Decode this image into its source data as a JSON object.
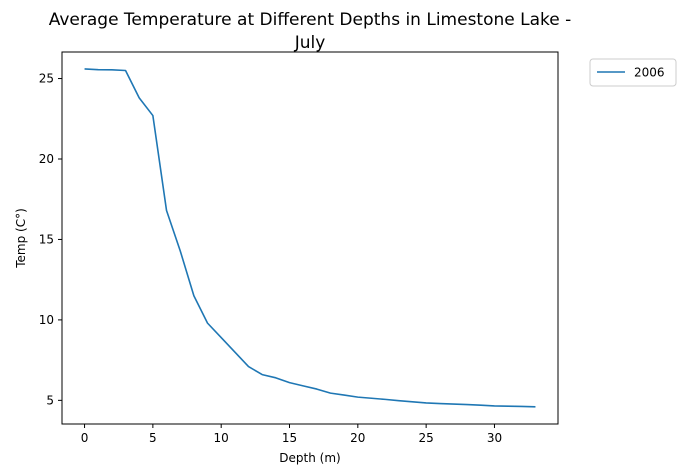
{
  "chart_data": {
    "type": "line",
    "title_line1": "Average Temperature at Different Depths in Limestone Lake -",
    "title_line2": "July",
    "xlabel": "Depth (m)",
    "ylabel": "Temp (C°)",
    "xlim": [
      -1.65,
      34.65
    ],
    "ylim": [
      3.53,
      26.65
    ],
    "xticks": [
      0,
      5,
      10,
      15,
      20,
      25,
      30
    ],
    "yticks": [
      5,
      10,
      15,
      20,
      25
    ],
    "legend_position": "outside-upper-right",
    "series": [
      {
        "name": "2006",
        "color": "#1f77b4",
        "x": [
          0,
          1,
          2,
          3,
          4,
          5,
          6,
          7,
          8,
          9,
          10,
          11,
          12,
          13,
          14,
          15,
          16,
          17,
          18,
          19,
          20,
          21,
          22,
          23,
          24,
          25,
          26,
          27,
          28,
          29,
          30,
          31,
          32,
          33
        ],
        "y": [
          25.6,
          25.55,
          25.54,
          25.5,
          23.8,
          22.7,
          16.8,
          14.3,
          11.5,
          9.8,
          8.9,
          8.0,
          7.1,
          6.6,
          6.4,
          6.1,
          5.9,
          5.7,
          5.45,
          5.33,
          5.2,
          5.13,
          5.06,
          4.98,
          4.91,
          4.84,
          4.8,
          4.77,
          4.74,
          4.7,
          4.65,
          4.64,
          4.62,
          4.6
        ]
      }
    ]
  }
}
